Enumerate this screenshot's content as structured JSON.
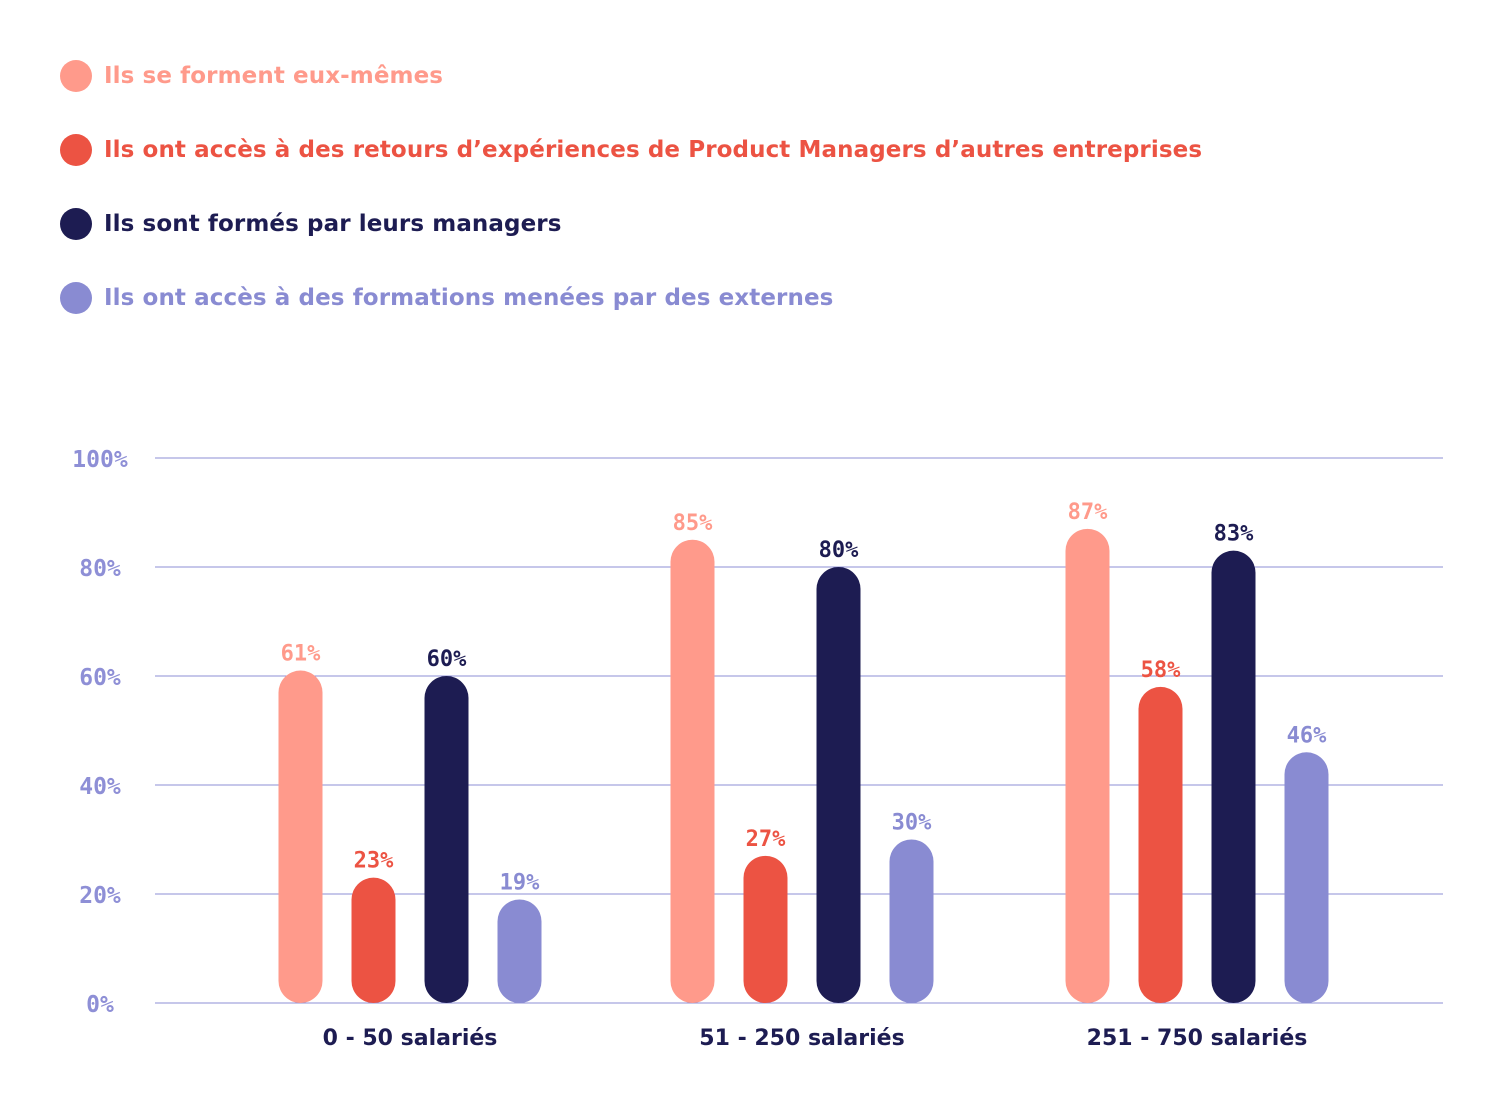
{
  "chart_data": {
    "type": "bar",
    "categories": [
      "0 - 50 salariés",
      "51 - 250 salariés",
      "251 - 750 salariés"
    ],
    "series": [
      {
        "name": "Ils se forment eux-mêmes",
        "color": "#ff9a8b",
        "values": [
          61,
          85,
          87
        ],
        "labels": [
          "61%",
          "85%",
          "87%"
        ]
      },
      {
        "name": "Ils ont accès à des retours d’expériences de Product Managers d’autres entreprises",
        "color": "#ec5343",
        "values": [
          23,
          27,
          58
        ],
        "labels": [
          "23%",
          "27%",
          "58%"
        ]
      },
      {
        "name": "Ils sont formés par leurs managers",
        "color": "#1d1c52",
        "values": [
          60,
          80,
          83
        ],
        "labels": [
          "60%",
          "80%",
          "83%"
        ]
      },
      {
        "name": "Ils ont accès à des formations menées par des externes",
        "color": "#898bd2",
        "values": [
          19,
          30,
          46
        ],
        "labels": [
          "19%",
          "30%",
          "46%"
        ]
      }
    ],
    "ylim": [
      0,
      100
    ],
    "yticks": [
      "0%",
      "20%",
      "40%",
      "60%",
      "80%",
      "100%"
    ],
    "grid": true,
    "legend_position": "top-left",
    "axis_color": "#8e8fd6",
    "category_label_color": "#1d1c52"
  }
}
